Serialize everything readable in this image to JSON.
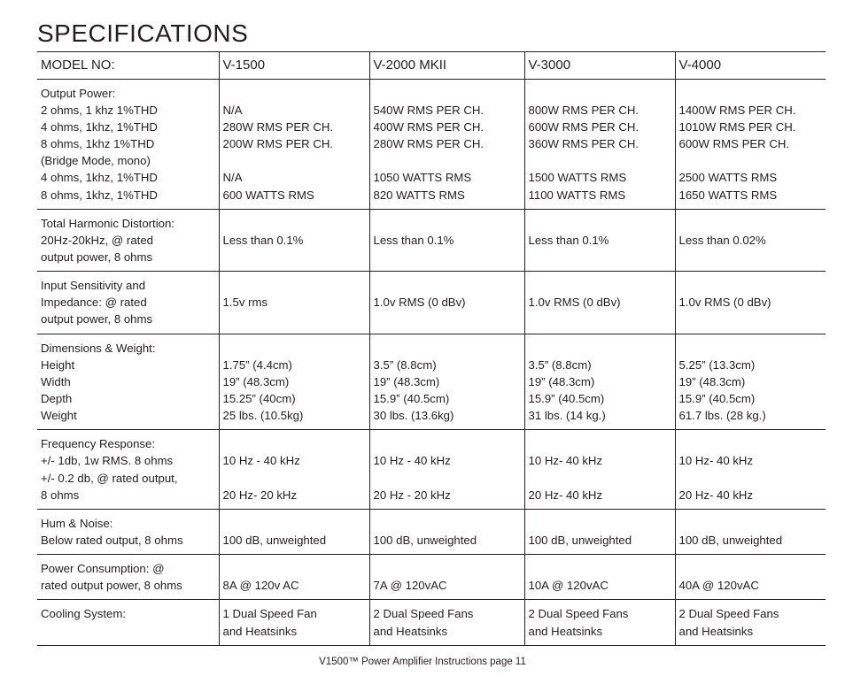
{
  "title": "SPECIFICATIONS",
  "header": {
    "label": "MODEL NO:",
    "models": [
      "V-1500",
      "V-2000 MKII",
      "V-3000",
      "V-4000"
    ]
  },
  "groups": [
    {
      "rows": [
        {
          "label": "Output Power:",
          "v": [
            "",
            "",
            "",
            ""
          ]
        },
        {
          "label": "2 ohms, 1 khz 1%THD",
          "v": [
            "N/A",
            "540W RMS PER CH.",
            "800W RMS PER CH.",
            "1400W RMS PER CH."
          ]
        },
        {
          "label": "4 ohms, 1khz, 1%THD",
          "v": [
            "280W RMS PER CH.",
            "400W RMS PER CH.",
            "600W RMS PER CH.",
            "1010W RMS PER CH."
          ]
        },
        {
          "label": "8 ohms, 1khz 1%THD",
          "v": [
            "200W RMS PER CH.",
            "280W RMS PER CH.",
            "360W RMS PER CH.",
            "600W RMS PER CH."
          ]
        },
        {
          "label": "(Bridge Mode, mono)",
          "v": [
            "",
            "",
            "",
            ""
          ]
        },
        {
          "label": "4 ohms, 1khz, 1%THD",
          "v": [
            "N/A",
            "1050 WATTS RMS",
            "1500 WATTS RMS",
            "2500 WATTS RMS"
          ]
        },
        {
          "label": "8 ohms, 1khz, 1%THD",
          "v": [
            "600 WATTS RMS",
            "820 WATTS RMS",
            "1100 WATTS RMS",
            "1650 WATTS RMS"
          ]
        }
      ]
    },
    {
      "rows": [
        {
          "label": "Total Harmonic Distortion:",
          "v": [
            "",
            "",
            "",
            ""
          ]
        },
        {
          "label": "20Hz-20kHz, @ rated",
          "v": [
            "Less than 0.1%",
            "Less than 0.1%",
            "Less than 0.1%",
            "Less than 0.02%"
          ]
        },
        {
          "label": "output power, 8 ohms",
          "v": [
            "",
            "",
            "",
            ""
          ]
        }
      ]
    },
    {
      "rows": [
        {
          "label": "Input Sensitivity and",
          "v": [
            "",
            "",
            "",
            ""
          ]
        },
        {
          "label": "Impedance: @ rated",
          "v": [
            "1.5v rms",
            "1.0v RMS (0 dBv)",
            "1.0v RMS (0 dBv)",
            "1.0v RMS (0 dBv)"
          ]
        },
        {
          "label": "output power, 8 ohms",
          "v": [
            "",
            "",
            "",
            ""
          ]
        }
      ]
    },
    {
      "rows": [
        {
          "label": "Dimensions & Weight:",
          "v": [
            "",
            "",
            "",
            ""
          ]
        },
        {
          "label": "Height",
          "v": [
            "1.75” (4.4cm)",
            "3.5” (8.8cm)",
            "3.5” (8.8cm)",
            "5.25” (13.3cm)"
          ]
        },
        {
          "label": "Width",
          "v": [
            "19” (48.3cm)",
            "19” (48.3cm)",
            "19” (48.3cm)",
            "19” (48.3cm)"
          ]
        },
        {
          "label": "Depth",
          "v": [
            "15.25” (40cm)",
            "15.9” (40.5cm)",
            "15.9” (40.5cm)",
            "15.9” (40.5cm)"
          ]
        },
        {
          "label": "Weight",
          "v": [
            "25 lbs. (10.5kg)",
            "30 lbs. (13.6kg)",
            "31 lbs. (14 kg.)",
            "61.7 lbs. (28 kg.)"
          ]
        }
      ]
    },
    {
      "rows": [
        {
          "label": "Frequency Response:",
          "v": [
            "",
            "",
            "",
            ""
          ]
        },
        {
          "label": "+/- 1db, 1w RMS. 8 ohms",
          "v": [
            "10 Hz - 40 kHz",
            "10 Hz - 40 kHz",
            "10 Hz- 40 kHz",
            "10 Hz- 40 kHz"
          ]
        },
        {
          "label": "+/- 0.2 db, @ rated output,",
          "v": [
            "",
            "",
            "",
            ""
          ]
        },
        {
          "label": "8 ohms",
          "v": [
            "20 Hz- 20 kHz",
            "20 Hz - 20 kHz",
            "20 Hz- 40 kHz",
            "20 Hz- 40 kHz"
          ]
        }
      ]
    },
    {
      "rows": [
        {
          "label": "Hum & Noise:",
          "v": [
            "",
            "",
            "",
            ""
          ]
        },
        {
          "label": "Below rated output, 8 ohms",
          "v": [
            "100 dB, unweighted",
            "100 dB, unweighted",
            "100 dB, unweighted",
            "100 dB, unweighted"
          ]
        }
      ]
    },
    {
      "rows": [
        {
          "label": "Power Consumption: @",
          "v": [
            "",
            "",
            "",
            ""
          ]
        },
        {
          "label": "rated output power, 8 ohms",
          "v": [
            "8A @ 120v AC",
            "7A @ 120vAC",
            "10A @ 120vAC",
            "40A @ 120vAC"
          ]
        }
      ]
    },
    {
      "last": true,
      "rows": [
        {
          "label": "Cooling System:",
          "v": [
            "1 Dual Speed Fan",
            "2 Dual Speed Fans",
            "2 Dual Speed Fans",
            "2 Dual Speed Fans"
          ]
        },
        {
          "label": "",
          "v": [
            "and Heatsinks",
            "and Heatsinks",
            "and Heatsinks",
            "and Heatsinks"
          ]
        }
      ]
    }
  ],
  "footer": "V1500™ Power Amplifier Instructions page 11"
}
